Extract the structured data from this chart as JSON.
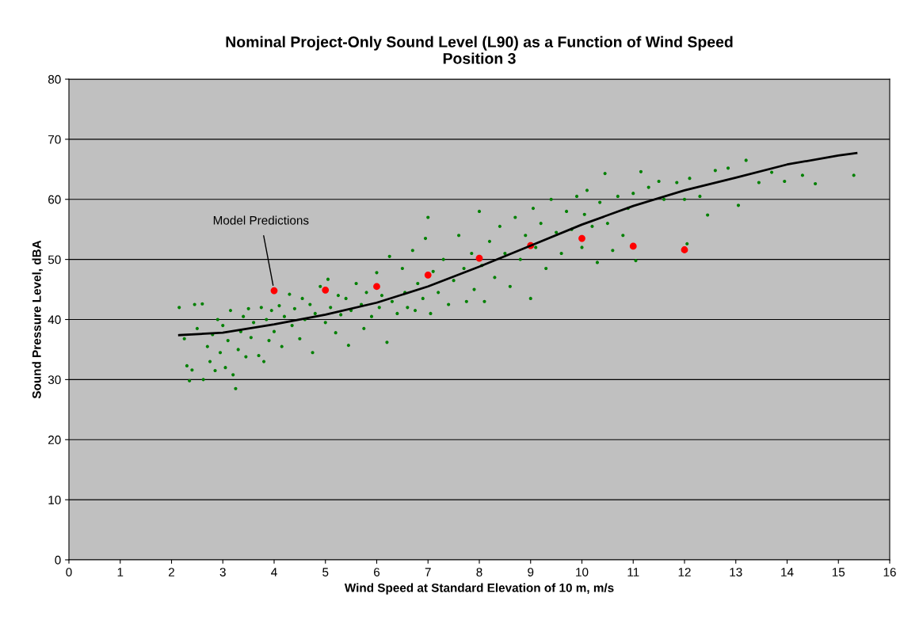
{
  "chart_data": {
    "type": "scatter",
    "title": "Nominal Project-Only Sound Level (L90) as a Function of Wind Speed\nPosition 3",
    "xlabel": "Wind Speed at Standard Elevation of 10 m, m/s",
    "ylabel": "Sound Pressure Level, dBA",
    "xlim": [
      0,
      16
    ],
    "xticks": [
      0,
      1,
      2,
      3,
      4,
      5,
      6,
      7,
      8,
      9,
      10,
      11,
      12,
      13,
      14,
      15,
      16
    ],
    "ylim": [
      0,
      80
    ],
    "yticks": [
      0,
      10,
      20,
      30,
      40,
      50,
      60,
      70,
      80
    ],
    "grid": "y",
    "legend": false,
    "marker": "circle",
    "annotations": [
      {
        "text": "Model Predictions",
        "x": 4,
        "y": 44.8
      }
    ],
    "series": [
      {
        "color": "#008000",
        "x": [
          2.15,
          2.25,
          2.3,
          2.35,
          2.4,
          2.45,
          2.5,
          2.6,
          2.62,
          2.7,
          2.75,
          2.8,
          2.85,
          2.9,
          2.95,
          3.0,
          3.05,
          3.1,
          3.15,
          3.2,
          3.25,
          3.3,
          3.35,
          3.4,
          3.45,
          3.5,
          3.55,
          3.6,
          3.7,
          3.75,
          3.8,
          3.85,
          3.9,
          3.95,
          4.0,
          4.1,
          4.15,
          4.2,
          4.3,
          4.35,
          4.4,
          4.5,
          4.55,
          4.6,
          4.7,
          4.75,
          4.8,
          4.9,
          5.0,
          5.05,
          5.1,
          5.2,
          5.25,
          5.3,
          5.4,
          5.45,
          5.5,
          5.6,
          5.7,
          5.75,
          5.8,
          5.9,
          6.0,
          6.05,
          6.1,
          6.2,
          6.25,
          6.3,
          6.4,
          6.5,
          6.55,
          6.6,
          6.7,
          6.75,
          6.8,
          6.9,
          6.95,
          7.0,
          7.05,
          7.1,
          7.2,
          7.3,
          7.4,
          7.5,
          7.6,
          7.7,
          7.75,
          7.85,
          7.9,
          8.0,
          8.05,
          8.1,
          8.2,
          8.3,
          8.4,
          8.5,
          8.6,
          8.7,
          8.8,
          8.9,
          9.0,
          9.05,
          9.1,
          9.2,
          9.3,
          9.4,
          9.5,
          9.6,
          9.7,
          9.8,
          9.9,
          10.0,
          10.05,
          10.1,
          10.2,
          10.3,
          10.35,
          10.45,
          10.5,
          10.6,
          10.7,
          10.8,
          10.9,
          11.0,
          11.05,
          11.15,
          11.3,
          11.5,
          11.6,
          11.85,
          12.0,
          12.05,
          12.1,
          12.3,
          12.45,
          12.6,
          12.85,
          13.05,
          13.2,
          13.45,
          13.7,
          13.95,
          14.3,
          14.55,
          15.3
        ],
        "values": [
          42.0,
          36.8,
          32.3,
          29.8,
          31.6,
          42.5,
          38.5,
          42.6,
          30.0,
          35.5,
          33.0,
          37.5,
          31.5,
          40.0,
          34.5,
          39.0,
          32.0,
          36.5,
          41.5,
          30.8,
          28.5,
          35.0,
          38.0,
          40.5,
          33.8,
          41.8,
          37.0,
          39.5,
          34.0,
          42.0,
          33.0,
          40.0,
          36.5,
          41.5,
          38.0,
          42.3,
          35.5,
          40.5,
          44.2,
          39.0,
          41.8,
          36.8,
          43.5,
          40.0,
          42.5,
          34.5,
          41.0,
          45.5,
          39.5,
          46.7,
          42.0,
          37.8,
          44.0,
          40.8,
          43.5,
          35.7,
          41.5,
          46.0,
          42.5,
          38.5,
          44.5,
          40.5,
          47.8,
          42.0,
          44.0,
          36.2,
          50.5,
          43.0,
          41.0,
          48.5,
          44.5,
          42.0,
          51.5,
          41.5,
          46.0,
          43.5,
          53.5,
          57.0,
          41.0,
          48.0,
          44.5,
          50.0,
          42.5,
          46.5,
          54.0,
          48.5,
          43.0,
          51.0,
          45.0,
          58.0,
          49.0,
          43.0,
          53.0,
          47.0,
          55.5,
          51.0,
          45.5,
          57.0,
          50.0,
          54.0,
          43.5,
          58.5,
          52.0,
          56.0,
          48.5,
          60.0,
          54.5,
          51.0,
          58.0,
          55.0,
          60.5,
          52.0,
          57.5,
          61.5,
          55.5,
          49.5,
          59.5,
          64.3,
          56.0,
          51.5,
          60.5,
          54.0,
          58.5,
          61.0,
          49.8,
          64.6,
          62.0,
          63.0,
          60.0,
          62.8,
          60.0,
          52.6,
          63.5,
          60.5,
          57.4,
          64.8,
          65.2,
          59.0,
          66.5,
          62.8,
          64.5,
          63.0,
          64.0,
          62.6,
          64.0
        ]
      },
      {
        "color": "#ff0000",
        "x": [
          4,
          5,
          6,
          7,
          8,
          9,
          10,
          11,
          12
        ],
        "values": [
          44.8,
          44.9,
          45.5,
          47.4,
          50.2,
          52.3,
          53.5,
          52.2,
          51.6
        ]
      },
      {
        "type": "line",
        "color": "#000000",
        "marker": "none",
        "x": [
          2.15,
          3,
          4,
          5,
          6,
          7,
          8,
          9,
          10,
          11,
          12,
          13,
          14,
          15,
          15.35
        ],
        "values": [
          37.4,
          37.8,
          39.2,
          40.8,
          42.8,
          45.5,
          48.8,
          52.3,
          55.8,
          58.9,
          61.5,
          63.6,
          65.8,
          67.3,
          67.7
        ]
      }
    ]
  }
}
